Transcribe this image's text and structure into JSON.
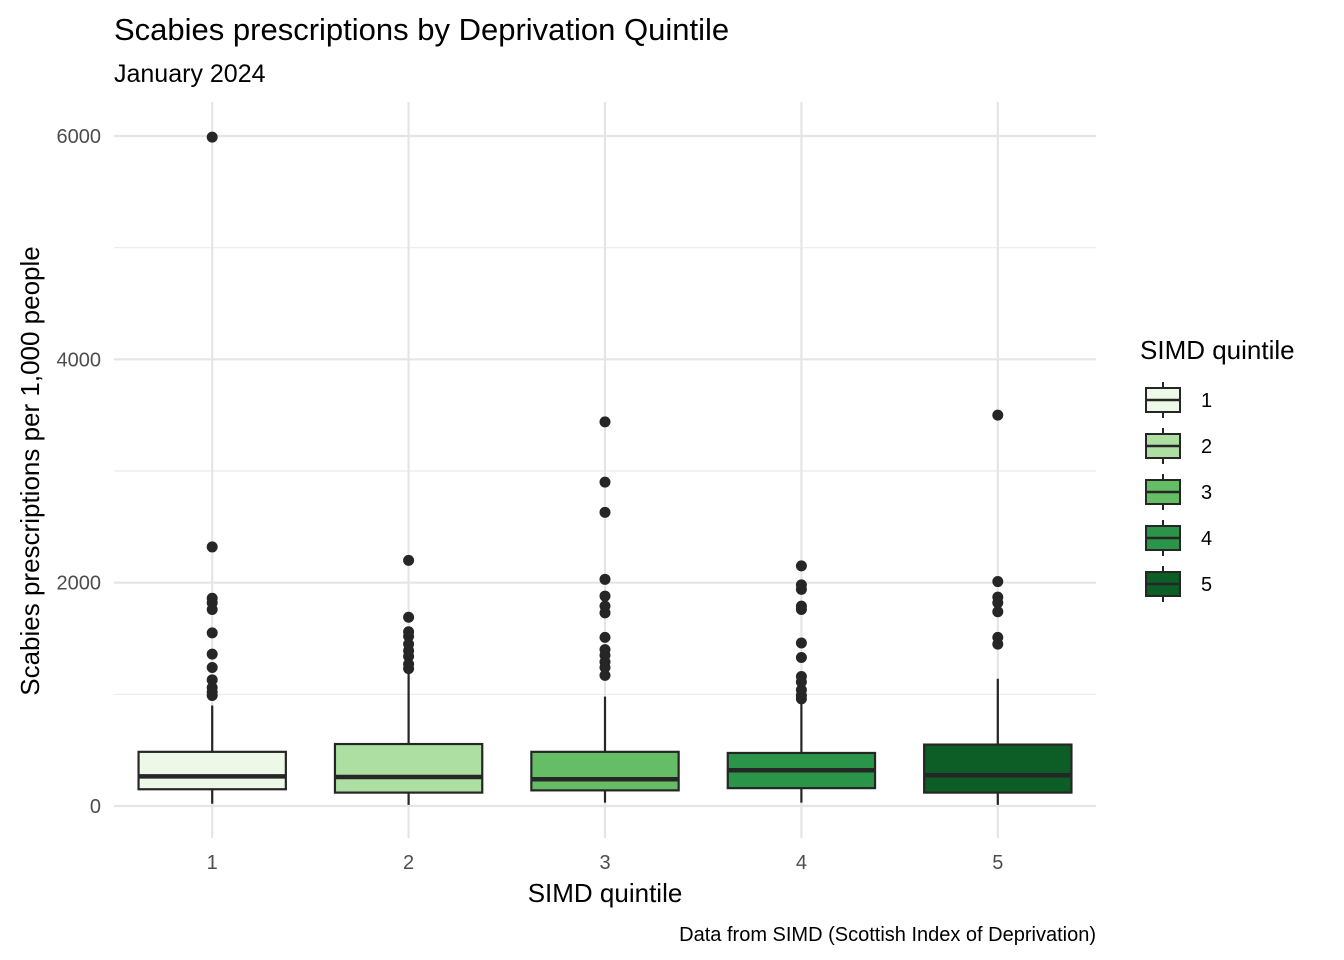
{
  "chart_data": {
    "type": "boxplot",
    "title": "Scabies prescriptions by Deprivation Quintile",
    "subtitle": "January 2024",
    "xlabel": "SIMD quintile",
    "ylabel": "Scabies prescriptions per 1,000 people",
    "caption": "Data from SIMD (Scottish Index of Deprivation)",
    "ylim": [
      -250,
      6300
    ],
    "y_ticks": [
      0,
      2000,
      4000,
      6000
    ],
    "y_minor_ticks": [
      1000,
      3000,
      5000
    ],
    "grid": true,
    "legend": {
      "title": "SIMD quintile",
      "position": "right"
    },
    "categories": [
      "1",
      "2",
      "3",
      "4",
      "5"
    ],
    "colors": [
      "#EDF8E9",
      "#ADDFA2",
      "#65BD66",
      "#2A9448",
      "#0C5D26"
    ],
    "outline_color": "#262626",
    "boxes": [
      {
        "category": "1",
        "min": 20,
        "q1": 150,
        "median": 265,
        "q3": 485,
        "max": 900,
        "outliers": [
          5990,
          2320,
          1860,
          1820,
          1760,
          1550,
          1360,
          1240,
          1130,
          1060,
          1020,
          990
        ]
      },
      {
        "category": "2",
        "min": 10,
        "q1": 120,
        "median": 260,
        "q3": 555,
        "max": 1190,
        "outliers": [
          2200,
          1690,
          1560,
          1520,
          1450,
          1390,
          1340,
          1270,
          1230
        ]
      },
      {
        "category": "3",
        "min": 30,
        "q1": 140,
        "median": 240,
        "q3": 485,
        "max": 980,
        "outliers": [
          3440,
          2900,
          2630,
          2030,
          1880,
          1790,
          1730,
          1510,
          1400,
          1350,
          1290,
          1240,
          1170
        ]
      },
      {
        "category": "4",
        "min": 30,
        "q1": 160,
        "median": 320,
        "q3": 475,
        "max": 960,
        "outliers": [
          2150,
          1980,
          1940,
          1790,
          1760,
          1460,
          1330,
          1160,
          1110,
          1040,
          990,
          960
        ]
      },
      {
        "category": "5",
        "min": 10,
        "q1": 120,
        "median": 275,
        "q3": 550,
        "max": 1140,
        "outliers": [
          3500,
          2010,
          1870,
          1820,
          1740,
          1510,
          1450
        ]
      }
    ]
  }
}
